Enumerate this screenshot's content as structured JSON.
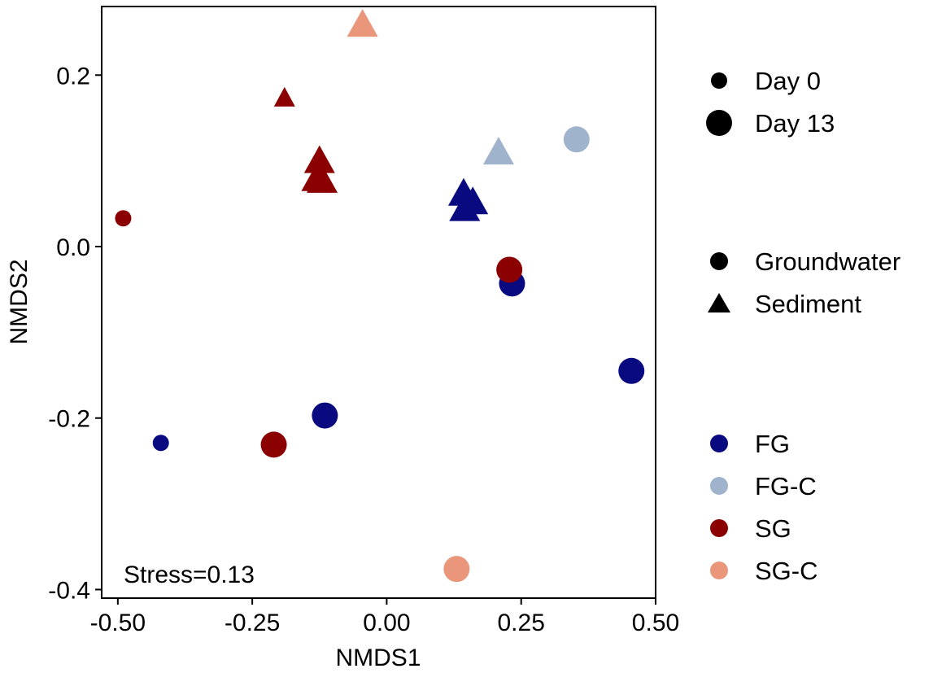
{
  "chart_data": {
    "type": "scatter",
    "xlabel": "NMDS1",
    "ylabel": "NMDS2",
    "xlim": [
      -0.53,
      0.5
    ],
    "ylim": [
      -0.41,
      0.28
    ],
    "xticks": [
      -0.5,
      -0.25,
      0.0,
      0.25,
      0.5
    ],
    "xtick_labels": [
      "-0.50",
      "-0.25",
      "0.00",
      "0.25",
      "0.50"
    ],
    "yticks": [
      -0.4,
      -0.2,
      0.0,
      0.2
    ],
    "ytick_labels": [
      "-0.4",
      "-0.2",
      "0.0",
      "0.2"
    ],
    "grid": false,
    "annotation": "Stress=0.13",
    "colors": {
      "FG": "#0a0a80",
      "FG-C": "#9fb3cc",
      "SG": "#8b0000",
      "SG-C": "#e9967a"
    },
    "legend": {
      "size": {
        "title": "",
        "entries": [
          "Day 0",
          "Day 13"
        ]
      },
      "shape": {
        "title": "",
        "entries": [
          "Groundwater",
          "Sediment"
        ]
      },
      "color": {
        "title": "",
        "entries": [
          "FG",
          "FG-C",
          "SG",
          "SG-C"
        ]
      }
    },
    "points": [
      {
        "x": -0.045,
        "y": 0.257,
        "group": "SG-C",
        "type": "Sediment",
        "day": "Day 13"
      },
      {
        "x": -0.19,
        "y": 0.172,
        "group": "SG",
        "type": "Sediment",
        "day": "Day 0"
      },
      {
        "x": -0.125,
        "y": 0.098,
        "group": "SG",
        "type": "Sediment",
        "day": "Day 13"
      },
      {
        "x": -0.13,
        "y": 0.077,
        "group": "SG",
        "type": "Sediment",
        "day": "Day 13"
      },
      {
        "x": -0.12,
        "y": 0.075,
        "group": "SG",
        "type": "Sediment",
        "day": "Day 13"
      },
      {
        "x": -0.49,
        "y": 0.033,
        "group": "SG",
        "type": "Groundwater",
        "day": "Day 0"
      },
      {
        "x": 0.208,
        "y": 0.108,
        "group": "FG-C",
        "type": "Sediment",
        "day": "Day 13"
      },
      {
        "x": 0.353,
        "y": 0.125,
        "group": "FG-C",
        "type": "Groundwater",
        "day": "Day 13"
      },
      {
        "x": 0.143,
        "y": 0.06,
        "group": "FG",
        "type": "Sediment",
        "day": "Day 13"
      },
      {
        "x": 0.16,
        "y": 0.05,
        "group": "FG",
        "type": "Sediment",
        "day": "Day 13"
      },
      {
        "x": 0.145,
        "y": 0.042,
        "group": "FG",
        "type": "Sediment",
        "day": "Day 13"
      },
      {
        "x": 0.233,
        "y": -0.043,
        "group": "FG",
        "type": "Groundwater",
        "day": "Day 13"
      },
      {
        "x": 0.228,
        "y": -0.027,
        "group": "SG",
        "type": "Groundwater",
        "day": "Day 13"
      },
      {
        "x": 0.455,
        "y": -0.145,
        "group": "FG",
        "type": "Groundwater",
        "day": "Day 13"
      },
      {
        "x": -0.115,
        "y": -0.197,
        "group": "FG",
        "type": "Groundwater",
        "day": "Day 13"
      },
      {
        "x": -0.42,
        "y": -0.229,
        "group": "FG",
        "type": "Groundwater",
        "day": "Day 0"
      },
      {
        "x": -0.21,
        "y": -0.231,
        "group": "SG",
        "type": "Groundwater",
        "day": "Day 13"
      },
      {
        "x": 0.13,
        "y": -0.376,
        "group": "SG-C",
        "type": "Groundwater",
        "day": "Day 13"
      }
    ]
  }
}
